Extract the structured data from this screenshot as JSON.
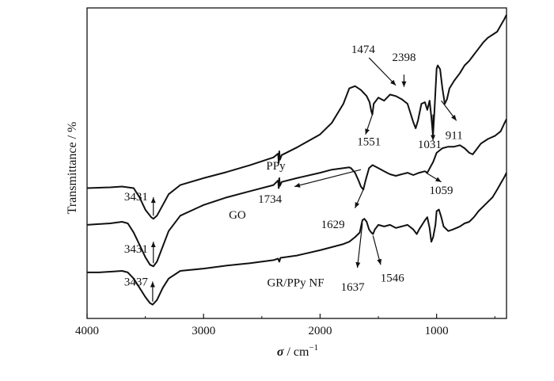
{
  "chart_data": {
    "type": "line",
    "title": "",
    "xlabel": "σ / cm⁻¹",
    "xlabel_parts": {
      "symbol": "σ",
      "unit": " / cm",
      "exponent": "−1"
    },
    "ylabel": "Transmittance / %",
    "xlim": [
      4000,
      400
    ],
    "x_reversed": true,
    "y_ticks_shown": false,
    "grid": false,
    "legend": "none",
    "x_ticks": [
      4000,
      3000,
      2000,
      1000
    ],
    "x_tick_labels": [
      "4000",
      "3000",
      "2000",
      "1000"
    ],
    "series": [
      {
        "name": "PPy",
        "points": [
          [
            4000,
            1.1
          ],
          [
            3800,
            1.11
          ],
          [
            3700,
            1.12
          ],
          [
            3600,
            1.1
          ],
          [
            3550,
            0.98
          ],
          [
            3500,
            0.82
          ],
          [
            3450,
            0.72
          ],
          [
            3431,
            0.7
          ],
          [
            3400,
            0.74
          ],
          [
            3350,
            0.88
          ],
          [
            3300,
            1.02
          ],
          [
            3200,
            1.14
          ],
          [
            3000,
            1.23
          ],
          [
            2800,
            1.31
          ],
          [
            2600,
            1.4
          ],
          [
            2400,
            1.5
          ],
          [
            2360,
            1.55
          ],
          [
            2355,
            1.43
          ],
          [
            2350,
            1.58
          ],
          [
            2345,
            1.47
          ],
          [
            2330,
            1.53
          ],
          [
            2200,
            1.63
          ],
          [
            2000,
            1.8
          ],
          [
            1900,
            1.95
          ],
          [
            1800,
            2.2
          ],
          [
            1750,
            2.4
          ],
          [
            1700,
            2.43
          ],
          [
            1650,
            2.38
          ],
          [
            1600,
            2.3
          ],
          [
            1575,
            2.22
          ],
          [
            1560,
            2.1
          ],
          [
            1551,
            2.06
          ],
          [
            1540,
            2.2
          ],
          [
            1500,
            2.28
          ],
          [
            1450,
            2.24
          ],
          [
            1400,
            2.32
          ],
          [
            1350,
            2.3
          ],
          [
            1300,
            2.26
          ],
          [
            1250,
            2.2
          ],
          [
            1200,
            1.96
          ],
          [
            1180,
            1.88
          ],
          [
            1160,
            1.98
          ],
          [
            1130,
            2.2
          ],
          [
            1100,
            2.22
          ],
          [
            1080,
            2.12
          ],
          [
            1060,
            2.24
          ],
          [
            1045,
            2.03
          ],
          [
            1031,
            1.78
          ],
          [
            1020,
            2.06
          ],
          [
            1000,
            2.66
          ],
          [
            990,
            2.7
          ],
          [
            970,
            2.65
          ],
          [
            950,
            2.4
          ],
          [
            930,
            2.2
          ],
          [
            911,
            2.26
          ],
          [
            890,
            2.4
          ],
          [
            850,
            2.5
          ],
          [
            800,
            2.6
          ],
          [
            760,
            2.7
          ],
          [
            720,
            2.76
          ],
          [
            690,
            2.82
          ],
          [
            660,
            2.88
          ],
          [
            640,
            2.92
          ],
          [
            600,
            3.0
          ],
          [
            560,
            3.06
          ],
          [
            520,
            3.1
          ],
          [
            480,
            3.14
          ],
          [
            450,
            3.22
          ],
          [
            420,
            3.3
          ],
          [
            400,
            3.36
          ]
        ]
      },
      {
        "name": "GO",
        "points": [
          [
            4000,
            0.62
          ],
          [
            3900,
            0.63
          ],
          [
            3800,
            0.64
          ],
          [
            3700,
            0.66
          ],
          [
            3650,
            0.64
          ],
          [
            3600,
            0.52
          ],
          [
            3550,
            0.36
          ],
          [
            3500,
            0.2
          ],
          [
            3460,
            0.1
          ],
          [
            3431,
            0.08
          ],
          [
            3400,
            0.14
          ],
          [
            3350,
            0.34
          ],
          [
            3300,
            0.54
          ],
          [
            3200,
            0.74
          ],
          [
            3000,
            0.88
          ],
          [
            2800,
            0.98
          ],
          [
            2600,
            1.06
          ],
          [
            2400,
            1.14
          ],
          [
            2360,
            1.2
          ],
          [
            2355,
            1.1
          ],
          [
            2350,
            1.23
          ],
          [
            2345,
            1.13
          ],
          [
            2330,
            1.18
          ],
          [
            2200,
            1.23
          ],
          [
            2000,
            1.3
          ],
          [
            1900,
            1.34
          ],
          [
            1800,
            1.36
          ],
          [
            1750,
            1.37
          ],
          [
            1734,
            1.36
          ],
          [
            1700,
            1.3
          ],
          [
            1670,
            1.2
          ],
          [
            1650,
            1.12
          ],
          [
            1629,
            1.08
          ],
          [
            1610,
            1.2
          ],
          [
            1580,
            1.36
          ],
          [
            1550,
            1.4
          ],
          [
            1500,
            1.36
          ],
          [
            1450,
            1.32
          ],
          [
            1400,
            1.28
          ],
          [
            1350,
            1.26
          ],
          [
            1300,
            1.28
          ],
          [
            1250,
            1.3
          ],
          [
            1200,
            1.27
          ],
          [
            1150,
            1.3
          ],
          [
            1100,
            1.32
          ],
          [
            1080,
            1.3
          ],
          [
            1059,
            1.36
          ],
          [
            1030,
            1.44
          ],
          [
            1000,
            1.56
          ],
          [
            950,
            1.62
          ],
          [
            900,
            1.64
          ],
          [
            850,
            1.64
          ],
          [
            800,
            1.66
          ],
          [
            760,
            1.62
          ],
          [
            720,
            1.56
          ],
          [
            690,
            1.54
          ],
          [
            660,
            1.6
          ],
          [
            620,
            1.68
          ],
          [
            560,
            1.74
          ],
          [
            500,
            1.78
          ],
          [
            450,
            1.84
          ],
          [
            420,
            1.94
          ],
          [
            400,
            2.0
          ]
        ]
      },
      {
        "name": "GR/PPy NF",
        "points": [
          [
            4000,
            0.0
          ],
          [
            3900,
            0.0
          ],
          [
            3800,
            0.01
          ],
          [
            3700,
            0.02
          ],
          [
            3650,
            0.0
          ],
          [
            3600,
            -0.08
          ],
          [
            3550,
            -0.2
          ],
          [
            3500,
            -0.32
          ],
          [
            3460,
            -0.4
          ],
          [
            3437,
            -0.42
          ],
          [
            3400,
            -0.36
          ],
          [
            3350,
            -0.2
          ],
          [
            3300,
            -0.08
          ],
          [
            3200,
            0.02
          ],
          [
            3000,
            0.05
          ],
          [
            2800,
            0.09
          ],
          [
            2600,
            0.12
          ],
          [
            2400,
            0.16
          ],
          [
            2360,
            0.18
          ],
          [
            2350,
            0.14
          ],
          [
            2340,
            0.19
          ],
          [
            2200,
            0.22
          ],
          [
            2000,
            0.29
          ],
          [
            1900,
            0.33
          ],
          [
            1800,
            0.37
          ],
          [
            1750,
            0.4
          ],
          [
            1700,
            0.46
          ],
          [
            1660,
            0.52
          ],
          [
            1637,
            0.68
          ],
          [
            1620,
            0.7
          ],
          [
            1600,
            0.66
          ],
          [
            1580,
            0.56
          ],
          [
            1560,
            0.52
          ],
          [
            1546,
            0.5
          ],
          [
            1530,
            0.56
          ],
          [
            1500,
            0.62
          ],
          [
            1450,
            0.6
          ],
          [
            1400,
            0.62
          ],
          [
            1350,
            0.58
          ],
          [
            1300,
            0.6
          ],
          [
            1250,
            0.62
          ],
          [
            1200,
            0.56
          ],
          [
            1170,
            0.5
          ],
          [
            1150,
            0.56
          ],
          [
            1100,
            0.68
          ],
          [
            1080,
            0.72
          ],
          [
            1060,
            0.58
          ],
          [
            1045,
            0.4
          ],
          [
            1030,
            0.46
          ],
          [
            1010,
            0.62
          ],
          [
            1000,
            0.8
          ],
          [
            980,
            0.82
          ],
          [
            960,
            0.72
          ],
          [
            940,
            0.6
          ],
          [
            900,
            0.54
          ],
          [
            860,
            0.56
          ],
          [
            800,
            0.6
          ],
          [
            760,
            0.64
          ],
          [
            720,
            0.66
          ],
          [
            680,
            0.72
          ],
          [
            640,
            0.8
          ],
          [
            600,
            0.86
          ],
          [
            560,
            0.92
          ],
          [
            520,
            0.98
          ],
          [
            480,
            1.08
          ],
          [
            450,
            1.16
          ],
          [
            420,
            1.24
          ],
          [
            400,
            1.3
          ]
        ]
      }
    ],
    "series_labels": [
      {
        "text": "PPy",
        "x": 2380,
        "y": 1.34
      },
      {
        "text": "GO",
        "x": 2710,
        "y": 0.7
      },
      {
        "text": "GR/PPy NF",
        "x": 2210,
        "y": -0.18
      }
    ],
    "annotations": [
      {
        "text": "3431",
        "x": 3580,
        "y": 0.94,
        "arrow_from": [
          3431,
          0.74
        ],
        "arrow_to": [
          3431,
          0.98
        ]
      },
      {
        "text": "3431",
        "x": 3580,
        "y": 0.26,
        "arrow_from": [
          3431,
          0.12
        ],
        "arrow_to": [
          3431,
          0.4
        ]
      },
      {
        "text": "3437",
        "x": 3580,
        "y": -0.17,
        "arrow_from": [
          3437,
          -0.38
        ],
        "arrow_to": [
          3437,
          -0.12
        ]
      },
      {
        "text": "1474",
        "x": 1630,
        "y": 2.86,
        "arrow_from": [
          1580,
          2.8
        ],
        "arrow_to": [
          1350,
          2.44
        ]
      },
      {
        "text": "2398",
        "x": 1280,
        "y": 2.76,
        "arrow_from": [
          1280,
          2.58
        ],
        "arrow_to": [
          1280,
          2.42
        ]
      },
      {
        "text": "1551",
        "x": 1580,
        "y": 1.66,
        "arrow_from": [
          1551,
          2.06
        ],
        "arrow_to": [
          1610,
          1.8
        ]
      },
      {
        "text": "1031",
        "x": 1060,
        "y": 1.62,
        "arrow_from": [
          1031,
          2.06
        ],
        "arrow_to": [
          1031,
          1.72
        ]
      },
      {
        "text": "911",
        "x": 850,
        "y": 1.74,
        "arrow_from": [
          960,
          2.24
        ],
        "arrow_to": [
          830,
          1.98
        ]
      },
      {
        "text": "1734",
        "x": 2430,
        "y": 0.91,
        "arrow_from": [
          1650,
          1.34
        ],
        "arrow_to": [
          2220,
          1.12
        ]
      },
      {
        "text": "1629",
        "x": 1890,
        "y": 0.58,
        "arrow_from": [
          1629,
          1.08
        ],
        "arrow_to": [
          1700,
          0.84
        ]
      },
      {
        "text": "1059",
        "x": 960,
        "y": 1.02,
        "arrow_from": [
          1090,
          1.3
        ],
        "arrow_to": [
          960,
          1.18
        ]
      },
      {
        "text": "1637",
        "x": 1720,
        "y": -0.24,
        "arrow_from": [
          1637,
          0.64
        ],
        "arrow_to": [
          1680,
          0.06
        ]
      },
      {
        "text": "1546",
        "x": 1380,
        "y": -0.12,
        "arrow_from": [
          1546,
          0.48
        ],
        "arrow_to": [
          1480,
          0.1
        ]
      }
    ]
  }
}
